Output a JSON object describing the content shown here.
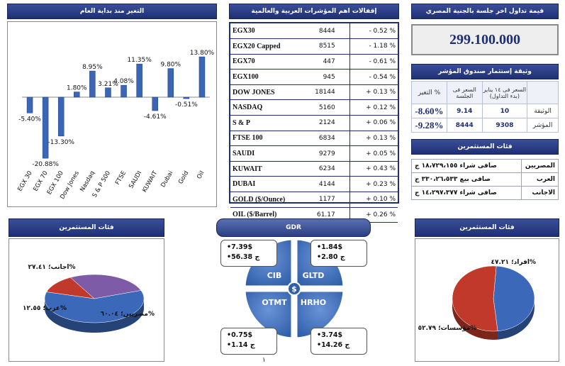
{
  "titles": {
    "ytd": "التغير منذ بداية العام",
    "indices": "إقفالات اهم المؤشرات العربية والعالمية",
    "turnover": "قيمة تداول اخر جلسة بالجنية المصري",
    "fund": "وثيقة إستثمار صندوق المؤشر",
    "investors": "فئات المستثمرين",
    "investors_left": "فئات المستثمرين",
    "gdr": "GDR",
    "investors_right": "فئات المستثمرين"
  },
  "chart_data": [
    {
      "type": "bar",
      "title": "التغير منذ بداية العام",
      "categories": [
        "EGX 30",
        "EGX 70",
        "EGX 100",
        "Dow Jones",
        "Nasdaq",
        "S & P 500",
        "FTSE",
        "SAUDI",
        "KUWAIT",
        "Dubai",
        "Gold",
        "Oil"
      ],
      "values": [
        -5.4,
        -20.88,
        -13.3,
        1.8,
        8.95,
        3.21,
        4.08,
        11.35,
        -4.61,
        9.8,
        -0.51,
        13.8
      ],
      "labels": [
        "-5.40%",
        "-20.88%",
        "-13.30%",
        "1.80%",
        "8.95%",
        "3.21%",
        "4.08%",
        "11.35%",
        "-4.61%",
        "9.80%",
        "-0.51%",
        "13.80%"
      ],
      "ylim": [
        -24,
        16
      ],
      "color": "#3a66b5"
    },
    {
      "type": "pie",
      "title": "فئات المستثمرين",
      "slices": [
        {
          "name": "مصريين",
          "value": 60.04,
          "label": "مصريين؛ ٦٠.٠٤%",
          "color": "#3b68b8"
        },
        {
          "name": "عرب",
          "value": 12.55,
          "label": "عرب؛ ١٢.٥٥%",
          "color": "#c0392b"
        },
        {
          "name": "اجانب",
          "value": 27.41,
          "label": "اجانب؛ ٢٧.٤١%",
          "color": "#7e5ba6"
        }
      ]
    },
    {
      "type": "pie",
      "title": "فئات المستثمرين",
      "slices": [
        {
          "name": "افراد",
          "value": 47.21,
          "label": "افراد؛ ٤٧.٢١%",
          "color": "#3b68b8"
        },
        {
          "name": "مؤسسات",
          "value": 52.79,
          "label": "مؤسسات؛ ٥٢.٧٩%",
          "color": "#c0392b"
        }
      ]
    }
  ],
  "indices": [
    {
      "name": "EGX30",
      "value": "8444",
      "change": "- 0.52 %"
    },
    {
      "name": "EGX20 Capped",
      "value": "8515",
      "change": "- 1.18 %"
    },
    {
      "name": "EGX70",
      "value": "447",
      "change": "- 0.61 %"
    },
    {
      "name": "EGX100",
      "value": "945",
      "change": "- 0.54 %"
    },
    {
      "name": "DOW JONES",
      "value": "18144",
      "change": "+ 0.13 %"
    },
    {
      "name": "NASDAQ",
      "value": "5160",
      "change": "+ 0.12 %"
    },
    {
      "name": "S & P",
      "value": "2124",
      "change": "+ 0.06 %"
    },
    {
      "name": "FTSE 100",
      "value": "6834",
      "change": "+ 0.13 %"
    },
    {
      "name": "SAUDI",
      "value": "9279",
      "change": "+ 0.05 %"
    },
    {
      "name": "KUWAIT",
      "value": "6234",
      "change": "+ 0.43 %"
    },
    {
      "name": "DUBAI",
      "value": "4144",
      "change": "+ 0.23 %"
    },
    {
      "name": "GOLD ($/Ounce)",
      "value": "1177",
      "change": "+ 0.10 %"
    },
    {
      "name": "OIL ($/Barrel)",
      "value": "61.17",
      "change": "+ 0.26 %"
    }
  ],
  "turnover": {
    "value": "299.100.000"
  },
  "fund": {
    "headers": [
      "التغير %",
      "السعر فى الجلسة",
      "السعر فى ١٤ يناير (بدء التداول)",
      ""
    ],
    "rows": [
      {
        "change": "-8.60%",
        "price": "9.14",
        "start": "10",
        "label": "الوثيقة"
      },
      {
        "change": "-9.28%",
        "price": "8444",
        "start": "9308",
        "label": "المؤشر"
      }
    ]
  },
  "investors_net": {
    "rows": [
      {
        "label": "المصريين",
        "value": "صافى شراء ١٨،٧٢٩،١٥٥ ج"
      },
      {
        "label": "العرب",
        "value": "صافى بيع ٣٣٠،٢٦،٥٣٣ ج"
      },
      {
        "label": "الاجانب",
        "value": "صافى شراء ١٤،٢٩٧،٣٧٧ ج"
      }
    ]
  },
  "gdr": {
    "center_symbol": "$",
    "quadrants": [
      "CIB",
      "GLTD",
      "OTMT",
      "HRHO"
    ],
    "cib": {
      "usd": "•7.39$",
      "egp": "•56.38 ج"
    },
    "gltd": {
      "usd": "•1.84$",
      "egp": "•2.80 ج"
    },
    "otmt": {
      "usd": "•0.75$",
      "egp": "•1.14 ج"
    },
    "hrho": {
      "usd": "•3.74$",
      "egp": "•14.26 ج"
    }
  },
  "page_number": "١"
}
